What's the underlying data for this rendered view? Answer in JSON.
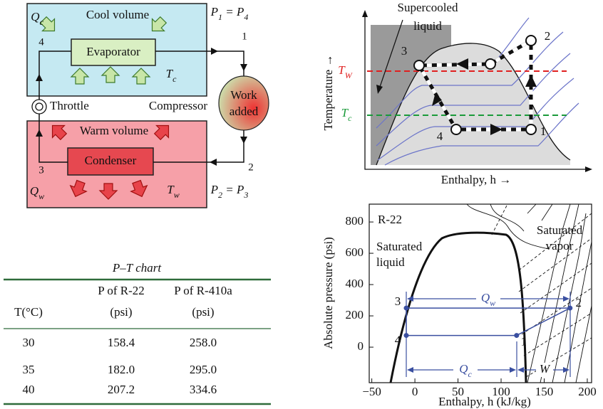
{
  "cycle_diagram": {
    "cool_side": {
      "title": "Cool volume",
      "heat": [
        "Q",
        "c"
      ],
      "temperature": [
        "T",
        "c"
      ]
    },
    "warm_side": {
      "title": "Warm volume",
      "heat": [
        "Q",
        "w"
      ],
      "temperature": [
        "T",
        "w"
      ]
    },
    "evaporator": "Evaporator",
    "condenser": "Condenser",
    "throttle": "Throttle",
    "compressor": "Compressor",
    "work": [
      "Work",
      "added"
    ],
    "low_pressure": [
      "P",
      "1",
      " = P",
      "4"
    ],
    "high_pressure": [
      "P",
      "2",
      " = P",
      "3"
    ],
    "state_labels": [
      "1",
      "2",
      "3",
      "4"
    ]
  },
  "th_diagram": {
    "callout": [
      "Supercooled",
      "liquid"
    ],
    "y_axis": "Temperature →",
    "x_axis": "Enthalpy, h →",
    "t_warm": [
      "T",
      "W"
    ],
    "t_cool": [
      "T",
      "c"
    ],
    "state_labels": [
      "1",
      "2",
      "3",
      "4"
    ]
  },
  "ph_chart": {
    "refrigerant": "R-22",
    "x_axis": "Enthalpy, h (kJ/kg)",
    "y_axis": "Absolute pressure (psi)",
    "xlim": [
      -53,
      205
    ],
    "ylim": [
      -227,
      914
    ],
    "xticks": [
      {
        "value": -50,
        "label": "−50"
      },
      0,
      50,
      100,
      150,
      200
    ],
    "yticks": [
      0,
      200,
      400,
      600,
      800
    ],
    "liquid_label": [
      "Saturated",
      "liquid"
    ],
    "vapor_label": [
      "Saturated",
      "vapor"
    ],
    "q_warm": [
      "Q",
      "w"
    ],
    "q_cool": [
      "Q",
      "c"
    ],
    "work": "W",
    "cycle_points": [
      {
        "label": "1",
        "h": 118,
        "p": 75
      },
      {
        "label": "2",
        "h": 180,
        "p": 250
      },
      {
        "label": "3",
        "h": -10,
        "p": 250
      },
      {
        "label": "4",
        "h": -10,
        "p": 75
      }
    ]
  },
  "pt_table": {
    "title": "P–T chart",
    "header_top": [
      "P of R-22",
      "P of R-410a"
    ],
    "header_bottom": [
      "T(°C)",
      "(psi)",
      "(psi)"
    ],
    "rows": [
      [
        "30",
        "158.4",
        "258.0"
      ],
      [
        "35",
        "182.0",
        "295.0"
      ],
      [
        "40",
        "207.2",
        "334.6"
      ]
    ]
  }
}
